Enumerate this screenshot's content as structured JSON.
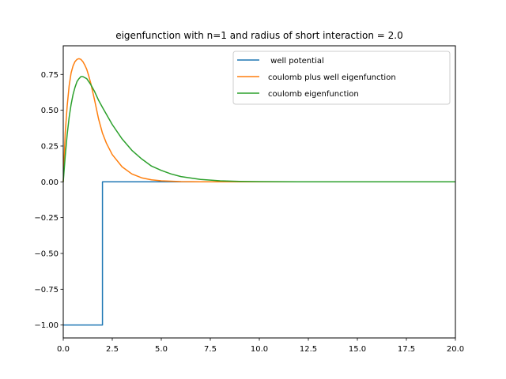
{
  "chart_data": {
    "type": "line",
    "title": "eigenfunction with n=1 and radius of short interaction = 2.0",
    "xlabel": "",
    "ylabel": "",
    "xlim": [
      0,
      20
    ],
    "ylim": [
      -1.09,
      0.95
    ],
    "grid": false,
    "legend_position": "top-right",
    "x_ticks": [
      0,
      2.5,
      5,
      7.5,
      10,
      12.5,
      15,
      17.5,
      20
    ],
    "x_tick_labels": [
      "0.0",
      "2.5",
      "5.0",
      "7.5",
      "10.0",
      "12.5",
      "15.0",
      "17.5",
      "20.0"
    ],
    "y_ticks": [
      0.75,
      0.5,
      0.25,
      0,
      -0.25,
      -0.5,
      -0.75,
      -1
    ],
    "y_tick_labels": [
      "0.75",
      "0.50",
      "0.25",
      "0.00",
      "−0.25",
      "−0.50",
      "−0.75",
      "−1.00"
    ],
    "series": [
      {
        "name": " well potential",
        "color": "#1f77b4",
        "x": [
          0,
          2,
          2,
          20
        ],
        "y": [
          -1,
          -1,
          0,
          0
        ]
      },
      {
        "name": "coulomb plus well eigenfunction",
        "color": "#ff7f0e",
        "x": [
          0,
          0.1,
          0.2,
          0.3,
          0.4,
          0.5,
          0.6,
          0.7,
          0.8,
          0.9,
          1.0,
          1.1,
          1.2,
          1.3,
          1.4,
          1.5,
          1.6,
          1.8,
          2.0,
          2.2,
          2.5,
          3.0,
          3.5,
          4.0,
          4.5,
          5.0,
          6.0,
          7.0,
          8.0,
          10.0,
          15.0,
          20.0
        ],
        "y": [
          0,
          0.34,
          0.53,
          0.67,
          0.76,
          0.81,
          0.84,
          0.855,
          0.86,
          0.855,
          0.84,
          0.815,
          0.785,
          0.74,
          0.69,
          0.63,
          0.57,
          0.44,
          0.34,
          0.27,
          0.19,
          0.105,
          0.055,
          0.028,
          0.014,
          0.007,
          0.0015,
          0.0003,
          0,
          0,
          0,
          0
        ]
      },
      {
        "name": "coulomb eigenfunction",
        "color": "#2ca02c",
        "x": [
          0,
          0.1,
          0.2,
          0.3,
          0.4,
          0.5,
          0.6,
          0.7,
          0.8,
          0.9,
          1.0,
          1.2,
          1.4,
          1.6,
          1.8,
          2.0,
          2.5,
          3.0,
          3.5,
          4.0,
          4.5,
          5.0,
          5.5,
          6.0,
          7.0,
          8.0,
          9.0,
          10.0,
          12.0,
          15.0,
          20.0
        ],
        "y": [
          0,
          0.18,
          0.33,
          0.45,
          0.54,
          0.61,
          0.66,
          0.7,
          0.72,
          0.735,
          0.735,
          0.72,
          0.68,
          0.63,
          0.57,
          0.52,
          0.4,
          0.3,
          0.22,
          0.16,
          0.11,
          0.08,
          0.055,
          0.037,
          0.017,
          0.0075,
          0.0033,
          0.0014,
          0.0003,
          0,
          0
        ]
      }
    ]
  }
}
